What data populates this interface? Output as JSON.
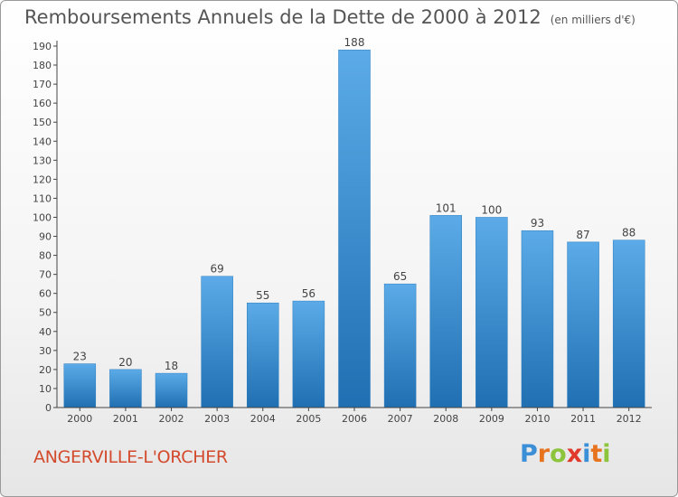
{
  "title": "Remboursements Annuels de la Dette de 2000 à 2012",
  "unit": "(en milliers d'€)",
  "town": "ANGERVILLE-L'ORCHER",
  "logo": {
    "letters": [
      "P",
      "r",
      "o",
      "x",
      "i",
      "t",
      "i"
    ],
    "colors": [
      "#3b8fd6",
      "#e8731e",
      "#8cc43c",
      "#e23a2a",
      "#3b8fd6",
      "#e8731e",
      "#8cc43c"
    ]
  },
  "colors": {
    "bar": "#3b8fd6",
    "bar_light": "#5cabe8",
    "bar_dark": "#1f6fb2"
  },
  "chart_data": {
    "type": "bar",
    "categories": [
      "2000",
      "2001",
      "2002",
      "2003",
      "2004",
      "2005",
      "2006",
      "2007",
      "2008",
      "2009",
      "2010",
      "2011",
      "2012"
    ],
    "values": [
      23,
      20,
      18,
      69,
      55,
      56,
      188,
      65,
      101,
      100,
      93,
      87,
      88
    ],
    "ylim": [
      0,
      190
    ],
    "yticks": [
      0,
      10,
      20,
      30,
      40,
      50,
      60,
      70,
      80,
      90,
      100,
      110,
      120,
      130,
      140,
      150,
      160,
      170,
      180,
      190
    ],
    "grid": false
  }
}
